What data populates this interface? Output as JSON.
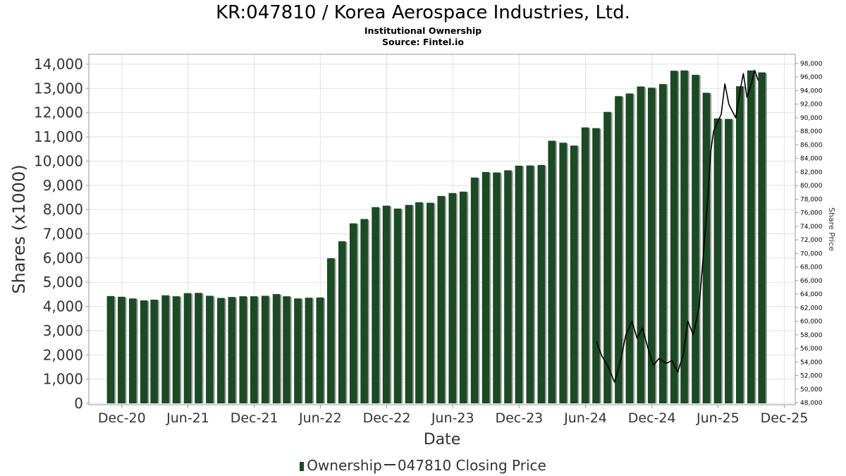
{
  "chart_data": {
    "type": "bar",
    "title": "KR:047810 / Korea Aerospace Industries, Ltd.",
    "subtitle": "Institutional Ownership",
    "source": "Source: Fintel.io",
    "xlabel": "Date",
    "ylabel": "Shares (x1000)",
    "ylabel_right": "Share Price",
    "ylim": [
      0,
      14400
    ],
    "ylim_right": [
      48000,
      99000
    ],
    "xlim": [
      "2020-09-01",
      "2025-12-31"
    ],
    "yticks": [
      0,
      1000,
      2000,
      3000,
      4000,
      5000,
      6000,
      7000,
      8000,
      9000,
      10000,
      11000,
      12000,
      13000,
      14000
    ],
    "yticks_right": [
      48000,
      50000,
      52000,
      54000,
      56000,
      58000,
      60000,
      62000,
      64000,
      66000,
      68000,
      70000,
      72000,
      74000,
      76000,
      78000,
      80000,
      82000,
      84000,
      86000,
      88000,
      90000,
      92000,
      94000,
      96000,
      98000
    ],
    "xticks": [
      {
        "date": "2020-12-01",
        "label": "Dec-20"
      },
      {
        "date": "2021-06-01",
        "label": "Jun-21"
      },
      {
        "date": "2021-12-01",
        "label": "Dec-21"
      },
      {
        "date": "2022-06-01",
        "label": "Jun-22"
      },
      {
        "date": "2022-12-01",
        "label": "Dec-22"
      },
      {
        "date": "2023-06-01",
        "label": "Jun-23"
      },
      {
        "date": "2023-12-01",
        "label": "Dec-23"
      },
      {
        "date": "2024-06-01",
        "label": "Jun-24"
      },
      {
        "date": "2024-12-01",
        "label": "Dec-24"
      },
      {
        "date": "2025-06-01",
        "label": "Jun-25"
      },
      {
        "date": "2025-12-01",
        "label": "Dec-25"
      }
    ],
    "grid": true,
    "legend_position": "bottom",
    "series": [
      {
        "name": "Ownership",
        "color": "#1b4a24",
        "dates": [
          "2020-10-31",
          "2020-11-30",
          "2020-12-31",
          "2021-01-31",
          "2021-02-28",
          "2021-03-31",
          "2021-04-30",
          "2021-05-31",
          "2021-06-30",
          "2021-07-31",
          "2021-08-31",
          "2021-09-30",
          "2021-10-31",
          "2021-11-30",
          "2021-12-31",
          "2022-01-31",
          "2022-02-28",
          "2022-03-31",
          "2022-04-30",
          "2022-05-31",
          "2022-06-30",
          "2022-07-31",
          "2022-08-31",
          "2022-09-30",
          "2022-10-31",
          "2022-11-30",
          "2022-12-31",
          "2023-01-31",
          "2023-02-28",
          "2023-03-31",
          "2023-04-30",
          "2023-05-31",
          "2023-06-30",
          "2023-07-31",
          "2023-08-31",
          "2023-09-30",
          "2023-10-31",
          "2023-11-30",
          "2023-12-31",
          "2024-01-31",
          "2024-02-29",
          "2024-03-31",
          "2024-04-30",
          "2024-05-31",
          "2024-06-30",
          "2024-07-31",
          "2024-08-31",
          "2024-09-30",
          "2024-10-31",
          "2024-11-30",
          "2024-12-31",
          "2025-01-31",
          "2025-02-28",
          "2025-03-31",
          "2025-04-30",
          "2025-05-31",
          "2025-06-30",
          "2025-07-31",
          "2025-08-31",
          "2025-09-30"
        ],
        "values": [
          4430,
          4400,
          4330,
          4250,
          4280,
          4460,
          4420,
          4550,
          4560,
          4440,
          4350,
          4390,
          4420,
          4420,
          4440,
          4510,
          4420,
          4330,
          4360,
          4370,
          5990,
          6690,
          7430,
          7610,
          8100,
          8160,
          8040,
          8190,
          8300,
          8280,
          8560,
          8680,
          8740,
          9320,
          9550,
          9530,
          9620,
          9810,
          9820,
          9840,
          10840,
          10760,
          10640,
          11390,
          11360,
          12030,
          12680,
          12790,
          13080,
          13030,
          13180,
          13730,
          13740,
          13560,
          12820,
          11760,
          11740,
          13090,
          13740,
          13660
        ]
      },
      {
        "name": "047810 Closing Price",
        "color": "#000000",
        "dates": [
          "2024-07-01",
          "2024-07-15",
          "2024-08-05",
          "2024-08-20",
          "2024-09-05",
          "2024-09-20",
          "2024-10-07",
          "2024-10-21",
          "2024-11-05",
          "2024-11-20",
          "2024-12-05",
          "2024-12-20",
          "2025-01-10",
          "2025-01-25",
          "2025-02-10",
          "2025-02-25",
          "2025-03-10",
          "2025-03-25",
          "2025-04-10",
          "2025-04-22",
          "2025-05-05",
          "2025-05-12",
          "2025-05-20",
          "2025-06-01",
          "2025-06-10",
          "2025-06-20",
          "2025-07-01",
          "2025-07-10",
          "2025-07-20",
          "2025-08-01",
          "2025-08-10",
          "2025-08-20",
          "2025-09-01",
          "2025-09-10",
          "2025-09-20"
        ],
        "values": [
          57000,
          55000,
          53000,
          51000,
          54000,
          58000,
          60000,
          57500,
          59000,
          56000,
          53500,
          54500,
          53800,
          54200,
          52500,
          55000,
          60000,
          58000,
          62000,
          70000,
          79000,
          85000,
          88000,
          89500,
          90500,
          95000,
          92000,
          91000,
          90000,
          94000,
          96500,
          93000,
          95000,
          97000,
          95500
        ]
      }
    ]
  }
}
